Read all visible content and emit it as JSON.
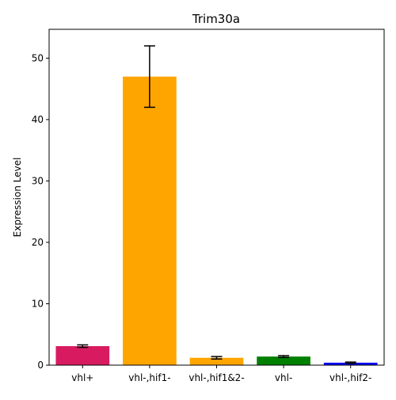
{
  "chart_data": {
    "type": "bar",
    "title": "Trim30a",
    "xlabel": "",
    "ylabel": "Expression Level",
    "categories": [
      "vhl+",
      "vhl-,hif1-",
      "vhl-,hif1&2-",
      "vhl-",
      "vhl-,hif2-"
    ],
    "values": [
      3.1,
      47.0,
      1.2,
      1.4,
      0.4
    ],
    "errors": [
      0.2,
      5.0,
      0.2,
      0.15,
      0.1
    ],
    "colors": [
      "#d81b60",
      "#ffa500",
      "#ffa500",
      "#008000",
      "#0000ff"
    ],
    "ylim": [
      0,
      54.7
    ],
    "yticks": [
      0,
      10,
      20,
      30,
      40,
      50
    ],
    "grid": false,
    "legend": "none"
  }
}
